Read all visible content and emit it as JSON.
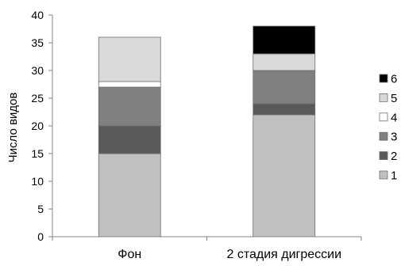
{
  "chart_data": {
    "type": "bar",
    "stacked": true,
    "title": "",
    "xlabel": "",
    "ylabel": "Число видов",
    "ylim": [
      0,
      40
    ],
    "yticks": [
      0,
      5,
      10,
      15,
      20,
      25,
      30,
      35,
      40
    ],
    "categories": [
      "Фон",
      "2 стадия дигрессии"
    ],
    "legend_position": "right",
    "grid": false,
    "series": [
      {
        "name": "1",
        "color": "#c0c0c0",
        "values": [
          15,
          22
        ]
      },
      {
        "name": "2",
        "color": "#595959",
        "values": [
          5,
          2
        ]
      },
      {
        "name": "3",
        "color": "#808080",
        "values": [
          7,
          6
        ]
      },
      {
        "name": "4",
        "color": "#ffffff",
        "values": [
          1,
          0
        ]
      },
      {
        "name": "5",
        "color": "#d9d9d9",
        "values": [
          8,
          3
        ]
      },
      {
        "name": "6",
        "color": "#000000",
        "values": [
          0,
          5
        ]
      }
    ]
  }
}
